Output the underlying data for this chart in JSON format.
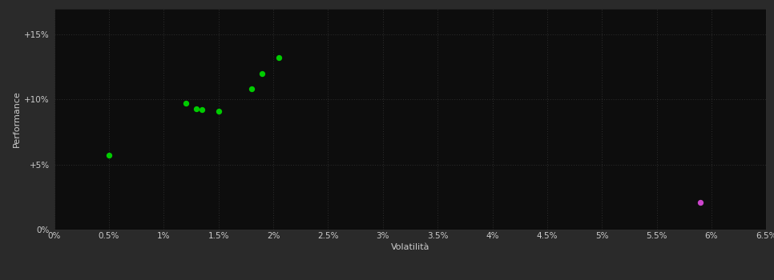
{
  "background_color": "#1a1a1a",
  "plot_background_color": "#0d0d0d",
  "outer_background_color": "#2a2a2a",
  "grid_color": "#2e2e2e",
  "xlabel": "Volatilità",
  "ylabel": "Performance",
  "xlim": [
    0.0,
    0.065
  ],
  "ylim": [
    0.0,
    0.17
  ],
  "xticks": [
    0.0,
    0.005,
    0.01,
    0.015,
    0.02,
    0.025,
    0.03,
    0.035,
    0.04,
    0.045,
    0.05,
    0.055,
    0.06,
    0.065
  ],
  "yticks": [
    0.0,
    0.05,
    0.1,
    0.15
  ],
  "ytick_labels": [
    "0%",
    "+5%",
    "+10%",
    "+15%"
  ],
  "xtick_labels": [
    "0%",
    "0.5%",
    "1%",
    "1.5%",
    "2%",
    "2.5%",
    "3%",
    "3.5%",
    "4%",
    "4.5%",
    "5%",
    "5.5%",
    "6%",
    "6.5%"
  ],
  "green_points": [
    [
      0.005,
      0.057
    ],
    [
      0.012,
      0.097
    ],
    [
      0.013,
      0.093
    ],
    [
      0.0135,
      0.092
    ],
    [
      0.015,
      0.091
    ],
    [
      0.018,
      0.108
    ],
    [
      0.019,
      0.12
    ],
    [
      0.0205,
      0.132
    ]
  ],
  "magenta_points": [
    [
      0.059,
      0.021
    ]
  ],
  "green_color": "#00cc00",
  "magenta_color": "#cc44cc",
  "marker_size": 28,
  "tick_color": "#cccccc",
  "label_color": "#cccccc",
  "label_fontsize": 8,
  "tick_fontsize": 7.5
}
